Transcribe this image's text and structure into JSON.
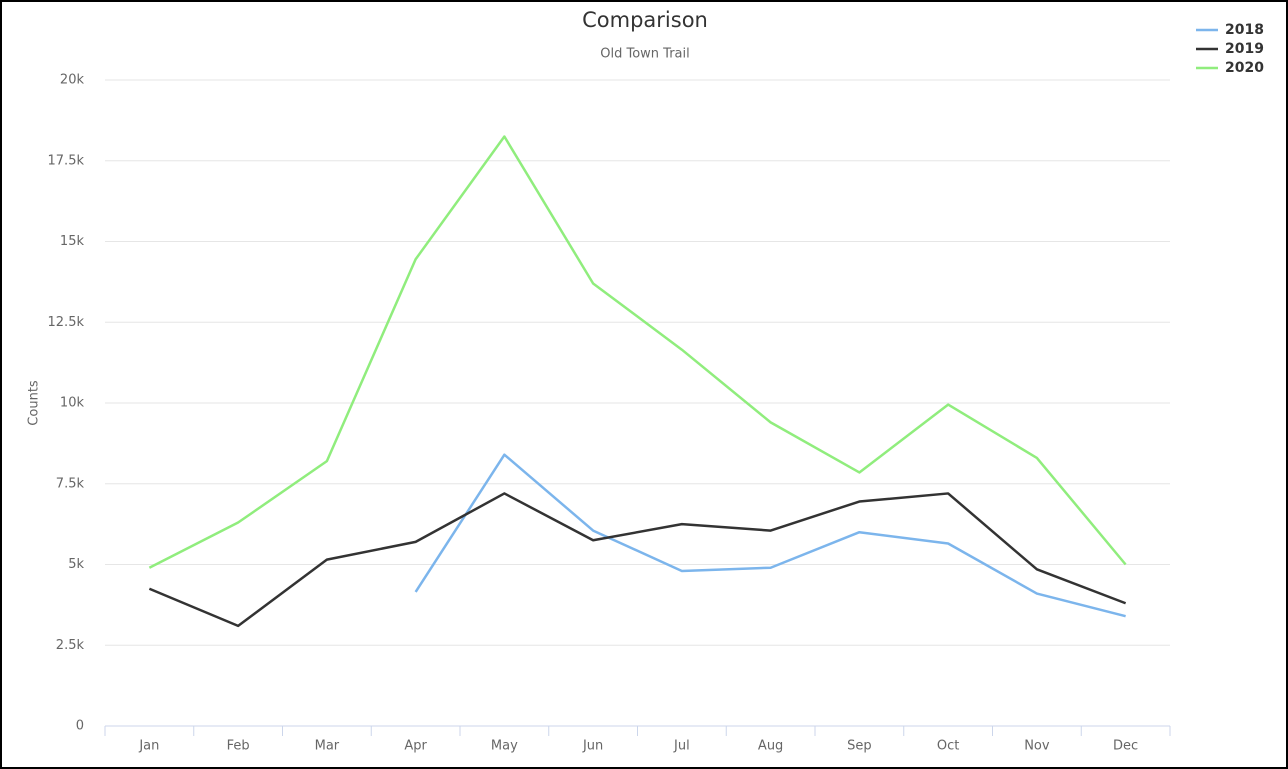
{
  "chart_data": {
    "type": "line",
    "title": "Comparison",
    "subtitle": "Old Town Trail",
    "y_label": "Counts",
    "categories": [
      "Jan",
      "Feb",
      "Mar",
      "Apr",
      "May",
      "Jun",
      "Jul",
      "Aug",
      "Sep",
      "Oct",
      "Nov",
      "Dec"
    ],
    "series": [
      {
        "name": "2018",
        "color": "#7cb5ec",
        "values": [
          null,
          null,
          null,
          4150,
          8400,
          6050,
          4800,
          4900,
          6000,
          5650,
          4100,
          3400
        ]
      },
      {
        "name": "2019",
        "color": "#333333",
        "values": [
          4250,
          3100,
          5150,
          5700,
          7200,
          5750,
          6250,
          6050,
          6950,
          7200,
          4850,
          3800
        ]
      },
      {
        "name": "2020",
        "color": "#90ed7d",
        "values": [
          4900,
          6300,
          8200,
          14450,
          18250,
          13700,
          11650,
          9400,
          7850,
          9950,
          8300,
          5000
        ]
      }
    ],
    "ylim": [
      0,
      20000
    ],
    "yticks": [
      0,
      {
        "value": 2500,
        "label": "2.5k"
      },
      {
        "value": 5000,
        "label": "5k"
      },
      {
        "value": 7500,
        "label": "7.5k"
      },
      {
        "value": 10000,
        "label": "10k"
      },
      {
        "value": 12500,
        "label": "12.5k"
      },
      {
        "value": 15000,
        "label": "15k"
      },
      {
        "value": 17500,
        "label": "17.5k"
      },
      {
        "value": 20000,
        "label": "20k"
      }
    ],
    "grid": true,
    "legend": "top-right"
  }
}
